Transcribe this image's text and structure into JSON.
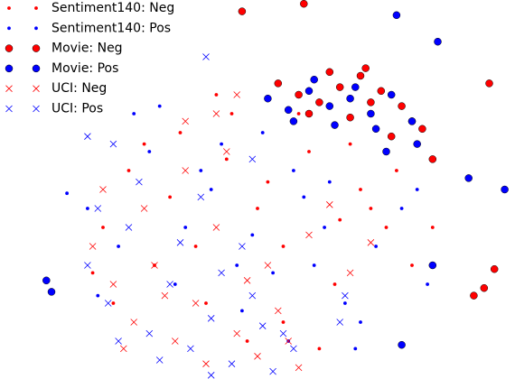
{
  "chart_data": {
    "type": "scatter",
    "xlim": [
      0,
      100
    ],
    "ylim": [
      0,
      100
    ],
    "legend": "upper left",
    "series": [
      {
        "name": "Sentiment140: Neg",
        "color": "#ff0000",
        "marker": "dot",
        "x": [
          20,
          25,
          30,
          35,
          40,
          45,
          50,
          55,
          60,
          65,
          70,
          75,
          80,
          22,
          33,
          44,
          55,
          66,
          77,
          48,
          38,
          58,
          68,
          28,
          84,
          18,
          52,
          62,
          72,
          42
        ],
        "y": [
          40,
          55,
          30,
          65,
          20,
          70,
          45,
          35,
          60,
          25,
          50,
          40,
          30,
          20,
          48,
          58,
          15,
          42,
          55,
          10,
          35,
          70,
          62,
          62,
          40,
          28,
          52,
          8,
          45,
          75
        ]
      },
      {
        "name": "Sentiment140: Pos",
        "color": "#0000ff",
        "marker": "dot",
        "x": [
          17,
          23,
          29,
          34,
          41,
          46,
          51,
          57,
          63,
          67,
          73,
          78,
          83,
          26,
          36,
          47,
          53,
          64,
          70,
          43,
          31,
          56,
          61,
          19,
          81,
          39,
          49,
          59,
          13,
          69
        ],
        "y": [
          45,
          35,
          60,
          25,
          50,
          30,
          65,
          55,
          40,
          20,
          35,
          45,
          25,
          70,
          40,
          18,
          28,
          52,
          15,
          62,
          72,
          10,
          30,
          22,
          50,
          55,
          38,
          48,
          49,
          8
        ]
      },
      {
        "name": "Movie: Neg",
        "color": "#ff0000",
        "marker": "circle",
        "x": [
          54,
          58,
          62,
          66,
          70,
          74,
          78,
          82,
          60,
          68,
          76,
          84,
          47,
          59,
          95,
          94,
          96,
          71,
          80,
          92,
          64,
          72
        ],
        "y": [
          78,
          75,
          73,
          77,
          80,
          76,
          72,
          66,
          70,
          69,
          64,
          58,
          97,
          99,
          78,
          24,
          29,
          82,
          68,
          22,
          81,
          73
        ]
      },
      {
        "name": "Movie: Pos",
        "color": "#0000ff",
        "marker": "circle",
        "x": [
          52,
          56,
          60,
          64,
          68,
          72,
          76,
          80,
          57,
          65,
          73,
          81,
          77,
          85,
          9,
          10,
          84,
          91,
          98,
          78,
          61,
          69,
          75
        ],
        "y": [
          74,
          71,
          76,
          72,
          74,
          70,
          75,
          68,
          68,
          67,
          66,
          62,
          96,
          89,
          26,
          23,
          30,
          53,
          50,
          9,
          79,
          77,
          60
        ]
      },
      {
        "name": "UCI: Neg",
        "color": "#ff0000",
        "marker": "x",
        "x": [
          18,
          22,
          26,
          30,
          34,
          38,
          42,
          46,
          50,
          54,
          58,
          20,
          28,
          36,
          44,
          52,
          24,
          32,
          40,
          48,
          56,
          60,
          64,
          68,
          72,
          42,
          36,
          46
        ],
        "y": [
          35,
          25,
          15,
          30,
          10,
          20,
          40,
          12,
          6,
          18,
          3,
          50,
          45,
          55,
          60,
          30,
          8,
          22,
          4,
          26,
          10,
          38,
          46,
          28,
          36,
          70,
          68,
          75
        ]
      },
      {
        "name": "UCI: Pos",
        "color": "#0000ff",
        "marker": "x",
        "x": [
          17,
          21,
          25,
          29,
          33,
          37,
          41,
          45,
          49,
          53,
          57,
          19,
          27,
          35,
          43,
          51,
          23,
          31,
          39,
          47,
          55,
          22,
          17,
          41,
          49,
          66,
          67,
          40
        ],
        "y": [
          30,
          20,
          40,
          12,
          25,
          8,
          16,
          4,
          22,
          2,
          8,
          45,
          52,
          36,
          28,
          14,
          10,
          5,
          48,
          35,
          12,
          62,
          64,
          1,
          58,
          15,
          22,
          85
        ]
      }
    ]
  }
}
